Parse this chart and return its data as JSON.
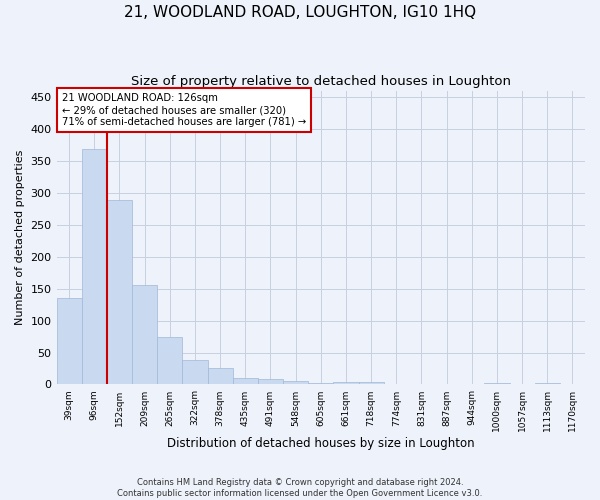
{
  "title": "21, WOODLAND ROAD, LOUGHTON, IG10 1HQ",
  "subtitle": "Size of property relative to detached houses in Loughton",
  "xlabel": "Distribution of detached houses by size in Loughton",
  "ylabel": "Number of detached properties",
  "footer_line1": "Contains HM Land Registry data © Crown copyright and database right 2024.",
  "footer_line2": "Contains public sector information licensed under the Open Government Licence v3.0.",
  "bar_labels": [
    "39sqm",
    "96sqm",
    "152sqm",
    "209sqm",
    "265sqm",
    "322sqm",
    "378sqm",
    "435sqm",
    "491sqm",
    "548sqm",
    "605sqm",
    "661sqm",
    "718sqm",
    "774sqm",
    "831sqm",
    "887sqm",
    "944sqm",
    "1000sqm",
    "1057sqm",
    "1113sqm",
    "1170sqm"
  ],
  "bar_values": [
    136,
    369,
    288,
    155,
    75,
    38,
    25,
    10,
    8,
    6,
    3,
    4,
    4,
    0,
    0,
    0,
    0,
    3,
    0,
    3,
    0
  ],
  "bar_color": "#c9d9f0",
  "bar_edge_color": "#a0b8d8",
  "property_line_x": 1.5,
  "property_label": "21 WOODLAND ROAD: 126sqm",
  "annotation_line1": "← 29% of detached houses are smaller (320)",
  "annotation_line2": "71% of semi-detached houses are larger (781) →",
  "annotation_box_color": "#ffffff",
  "annotation_border_color": "#cc0000",
  "vline_color": "#cc0000",
  "ylim": [
    0,
    460
  ],
  "yticks": [
    0,
    50,
    100,
    150,
    200,
    250,
    300,
    350,
    400,
    450
  ],
  "bg_color": "#eef2fa",
  "axes_bg_color": "#eef2fa",
  "grid_color": "#c8d0e0",
  "title_fontsize": 11,
  "subtitle_fontsize": 9.5
}
